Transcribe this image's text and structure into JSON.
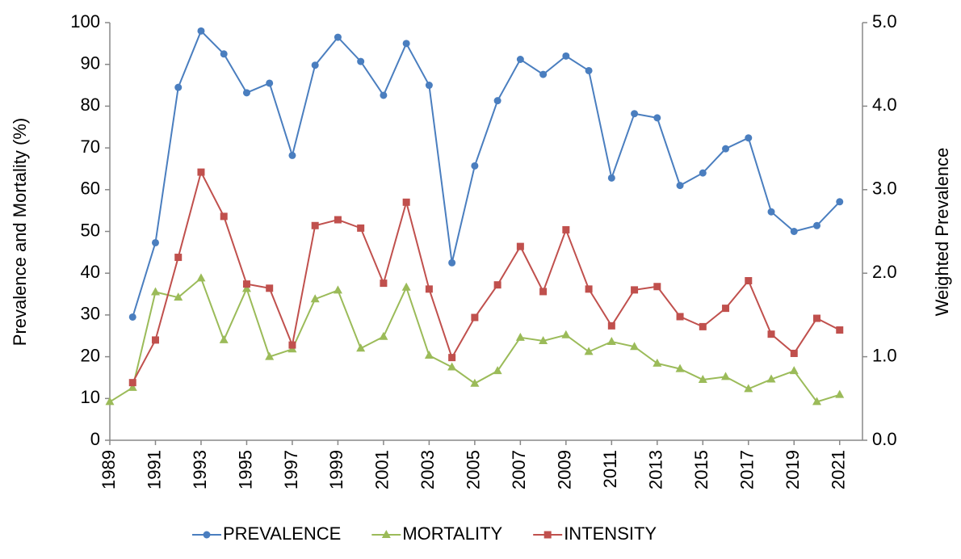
{
  "chart_data": {
    "type": "line",
    "y_label": "Prevalence and Mortality (%)",
    "y2_label": "Weighted Prevalence",
    "x": [
      1989,
      1990,
      1991,
      1992,
      1993,
      1994,
      1995,
      1996,
      1997,
      1998,
      1999,
      2000,
      2001,
      2002,
      2003,
      2004,
      2005,
      2006,
      2007,
      2008,
      2009,
      2010,
      2011,
      2012,
      2013,
      2014,
      2015,
      2016,
      2017,
      2018,
      2019,
      2020,
      2021
    ],
    "xlim": [
      1989,
      2022
    ],
    "xticks": [
      1989,
      1991,
      1993,
      1995,
      1997,
      1999,
      2001,
      2003,
      2005,
      2007,
      2009,
      2011,
      2013,
      2015,
      2017,
      2019,
      2021
    ],
    "ylim": [
      0,
      100
    ],
    "yticks": [
      0,
      10,
      20,
      30,
      40,
      50,
      60,
      70,
      80,
      90,
      100
    ],
    "y2lim": [
      0,
      5
    ],
    "y2ticks": [
      {
        "value": 0,
        "label": "0.0"
      },
      {
        "value": 1,
        "label": "1.0"
      },
      {
        "value": 2,
        "label": "2.0"
      },
      {
        "value": 3,
        "label": "3.0"
      },
      {
        "value": 4,
        "label": "4.0"
      },
      {
        "value": 5,
        "label": "5.0"
      }
    ],
    "grid": false,
    "legend": "bottom",
    "series": [
      {
        "name": "PREVALENCE",
        "color": "#4a7ebf",
        "marker": "circle",
        "values": [
          null,
          29.5,
          47.3,
          84.5,
          98,
          92.5,
          83.2,
          85.5,
          68.2,
          89.8,
          96.5,
          90.7,
          82.6,
          95,
          85,
          42.5,
          65.7,
          81.3,
          91.2,
          87.6,
          92,
          88.5,
          62.8,
          78.2,
          77.2,
          61,
          64,
          69.8,
          72.4,
          54.7,
          50,
          51.4,
          57.1
        ]
      },
      {
        "name": "MORTALITY",
        "color": "#9bbb59",
        "marker": "triangle",
        "values": [
          9.2,
          12.6,
          35.5,
          34.2,
          38.8,
          24,
          36.3,
          20,
          21.8,
          33.8,
          35.9,
          22,
          24.8,
          36.6,
          20.3,
          17.5,
          13.6,
          16.6,
          24.6,
          23.8,
          25.2,
          21.2,
          23.6,
          22.4,
          18.4,
          17.1,
          14.5,
          15.2,
          12.3,
          14.6,
          16.6,
          9.2,
          10.9
        ]
      },
      {
        "name": "INTENSITY",
        "color": "#c0504d",
        "marker": "square",
        "axis": "y2",
        "values": [
          null,
          0.69,
          1.2,
          2.19,
          3.21,
          2.68,
          1.87,
          1.82,
          1.14,
          2.57,
          2.64,
          2.54,
          1.88,
          2.85,
          1.81,
          0.99,
          1.47,
          1.86,
          2.32,
          1.78,
          2.52,
          1.81,
          1.37,
          1.8,
          1.84,
          1.48,
          1.36,
          1.58,
          1.91,
          1.27,
          1.04,
          1.46,
          1.32
        ]
      }
    ]
  }
}
